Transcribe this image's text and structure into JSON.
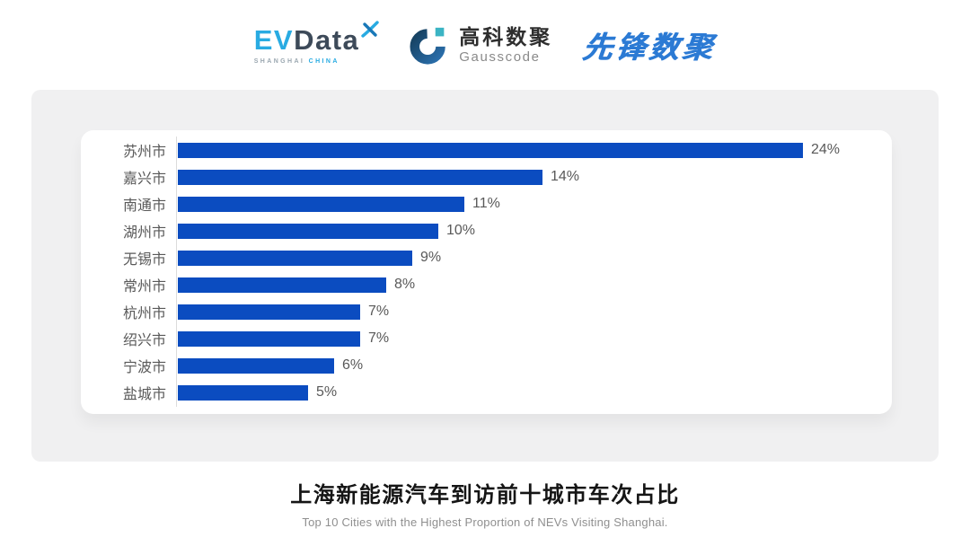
{
  "header": {
    "logos": {
      "evdata": {
        "ev": "EV",
        "data": "Data",
        "sub_left": "SHANGHAI",
        "sub_right": "CHINA",
        "ev_color": "#29ABE2",
        "data_color": "#3D4A59"
      },
      "gausscode": {
        "cn": "高科数聚",
        "en": "Gausscode",
        "mark_colors": {
          "arc": "#1C4E7E",
          "square": "#3BB4C4"
        }
      },
      "xianfeng": {
        "text": "先锋数聚",
        "color": "#2B7AD4"
      }
    }
  },
  "chart_data": {
    "type": "bar",
    "orientation": "horizontal",
    "title": "",
    "categories": [
      "苏州市",
      "嘉兴市",
      "南通市",
      "湖州市",
      "无锡市",
      "常州市",
      "杭州市",
      "绍兴市",
      "宁波市",
      "盐城市"
    ],
    "values": [
      24,
      14,
      11,
      10,
      9,
      8,
      7,
      7,
      6,
      5
    ],
    "value_labels": [
      "24%",
      "14%",
      "11%",
      "10%",
      "9%",
      "8%",
      "7%",
      "7%",
      "6%",
      "5%"
    ],
    "xlabel": "",
    "ylabel": "",
    "xlim": [
      0,
      27
    ],
    "grid": false,
    "legend": false,
    "bar_color": "#0B4CC0",
    "label_color": "#595959",
    "axis_line_color": "#dcdcdc"
  },
  "footer": {
    "title": "上海新能源汽车到访前十城市车次占比",
    "subtitle": "Top 10 Cities with the Highest Proportion of  NEVs Visiting Shanghai."
  }
}
